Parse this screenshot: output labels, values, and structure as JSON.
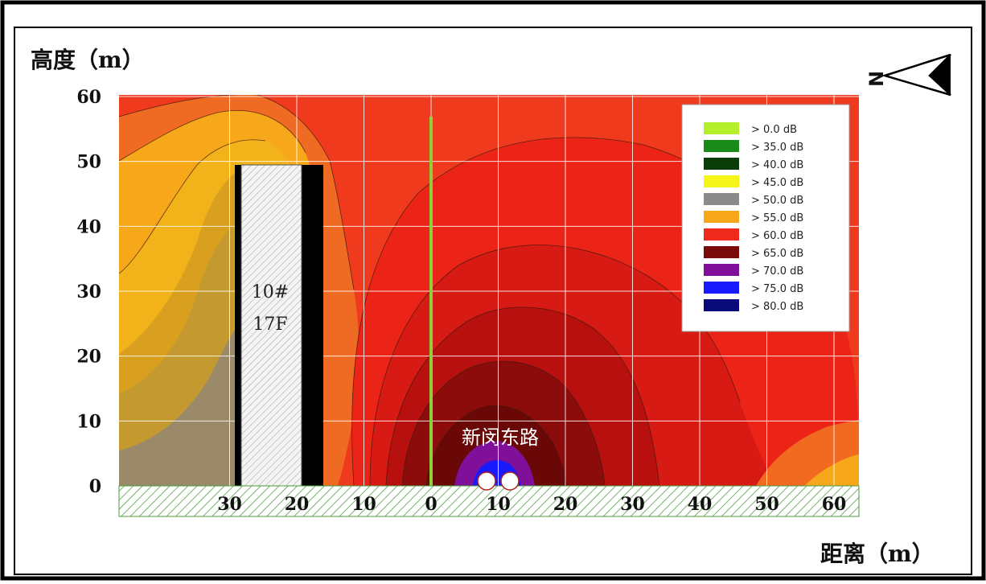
{
  "chart_data": {
    "type": "heatmap",
    "ylabel": "高度（m）",
    "xlabel": "距离（m）",
    "y_ticks": [
      "60",
      "50",
      "40",
      "30",
      "20",
      "10",
      "0"
    ],
    "x_ticks": [
      "30",
      "20",
      "10",
      "0",
      "10",
      "20",
      "30",
      "40",
      "50",
      "60"
    ],
    "x_tick_values": [
      -30,
      -20,
      -10,
      0,
      10,
      20,
      30,
      40,
      50,
      60
    ],
    "y_tick_values": [
      60,
      50,
      40,
      30,
      20,
      10,
      0
    ],
    "xlim": [
      -45,
      63
    ],
    "ylim": [
      0,
      56
    ],
    "grid": true,
    "legend_position": "top-right",
    "legend": [
      {
        "label": "> 0.0 dB",
        "color": "#b5ef2c"
      },
      {
        "label": "> 35.0 dB",
        "color": "#1a8a1a"
      },
      {
        "label": "> 40.0 dB",
        "color": "#0b3d0b"
      },
      {
        "label": "> 45.0 dB",
        "color": "#f5f51a"
      },
      {
        "label": "> 50.0 dB",
        "color": "#8a8a8a"
      },
      {
        "label": "> 55.0 dB",
        "color": "#f7a81a"
      },
      {
        "label": "> 60.0 dB",
        "color": "#ee2a1c"
      },
      {
        "label": "> 65.0 dB",
        "color": "#7a0a0a"
      },
      {
        "label": "> 70.0 dB",
        "color": "#80109a"
      },
      {
        "label": "> 75.0 dB",
        "color": "#1a1aff"
      },
      {
        "label": "> 80.0 dB",
        "color": "#0a0a7a"
      }
    ],
    "building": {
      "label_line1": "10#",
      "label_line2": "17F",
      "x_from": -28,
      "x_to": -18,
      "height": 48
    },
    "road": {
      "label": "新闵东路",
      "x": 10
    },
    "barrier_x": 0,
    "north_label": "N"
  }
}
